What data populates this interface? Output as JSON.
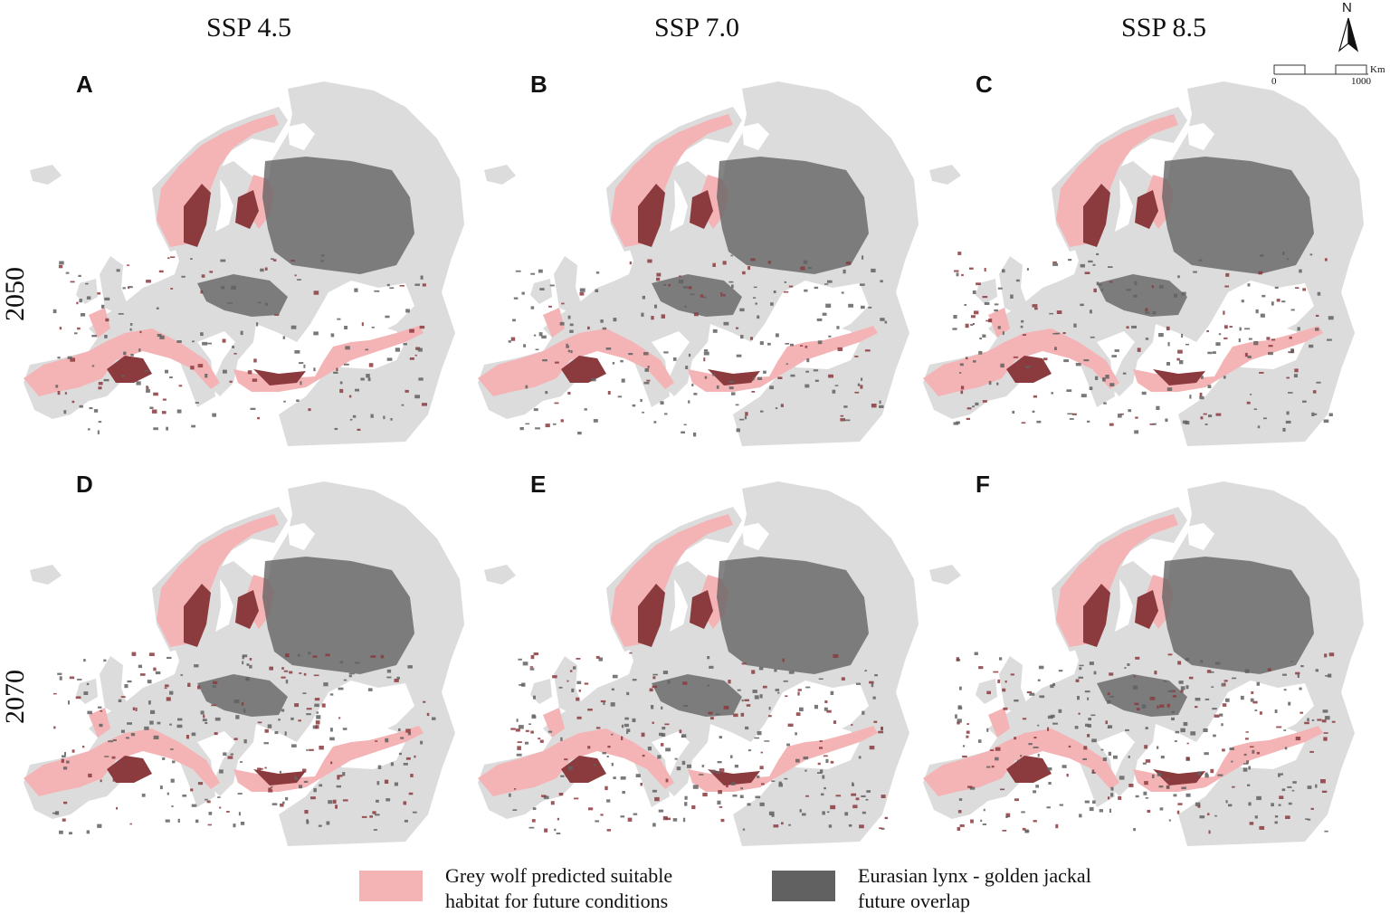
{
  "columns": [
    "SSP 4.5",
    "SSP 7.0",
    "SSP 8.5"
  ],
  "rows": [
    "2050",
    "2070"
  ],
  "panels": [
    {
      "label": "A",
      "period": "2050",
      "scenario": "SSP 4.5"
    },
    {
      "label": "B",
      "period": "2050",
      "scenario": "SSP 7.0"
    },
    {
      "label": "C",
      "period": "2050",
      "scenario": "SSP 8.5"
    },
    {
      "label": "D",
      "period": "2070",
      "scenario": "SSP 4.5"
    },
    {
      "label": "E",
      "period": "2070",
      "scenario": "SSP 7.0"
    },
    {
      "label": "F",
      "period": "2070",
      "scenario": "SSP 8.5"
    }
  ],
  "map_elements": {
    "north_label": "N",
    "scale_zero": "0",
    "scale_max": "1000",
    "scale_unit": "Km"
  },
  "legend": {
    "wolf_line1": "Grey wolf predicted suitable",
    "wolf_line2": "habitat for future conditions",
    "overlap_line1": "Eurasian lynx - golden jackal",
    "overlap_line2": "future overlap"
  },
  "colors": {
    "land": "#dcdcdc",
    "wolf_habitat": "#f4b4b6",
    "wolf_overlap": "#8b3a3e",
    "lynx_jackal_overlap": "#616161",
    "sea": "#ffffff"
  }
}
